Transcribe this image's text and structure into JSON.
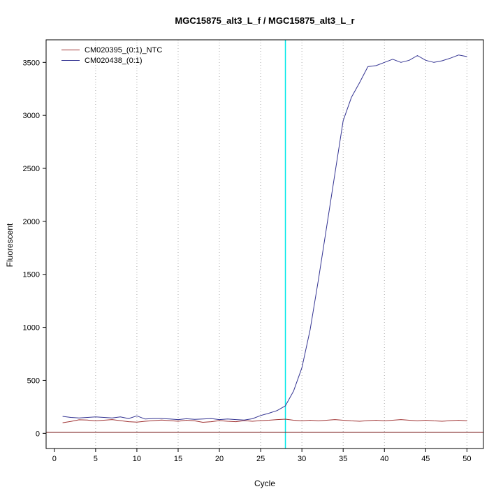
{
  "chart_data": {
    "type": "line",
    "title": "MGC15875_alt3_L_f / MGC15875_alt3_L_r",
    "xlabel": "Cycle",
    "ylabel": "Fluorescent",
    "xlim": [
      -1,
      52
    ],
    "ylim": [
      -143,
      3713
    ],
    "xticks": [
      0,
      5,
      10,
      15,
      20,
      25,
      30,
      35,
      40,
      45,
      50
    ],
    "yticks": [
      0,
      500,
      1000,
      1500,
      2000,
      2500,
      3000,
      3500
    ],
    "grid": "vertical-dotted",
    "grid_color": "#aaaaaa",
    "legend_position": "top-left",
    "baseline": {
      "y": 10,
      "color": "#7b1f1f"
    },
    "threshold_cycle_line": {
      "x": 28,
      "color": "#00e8e8"
    },
    "x": [
      1,
      2,
      3,
      4,
      5,
      6,
      7,
      8,
      9,
      10,
      11,
      12,
      13,
      14,
      15,
      16,
      17,
      18,
      19,
      20,
      21,
      22,
      23,
      24,
      25,
      26,
      27,
      28,
      29,
      30,
      31,
      32,
      33,
      34,
      35,
      36,
      37,
      38,
      39,
      40,
      41,
      42,
      43,
      44,
      45,
      46,
      47,
      48,
      49,
      50
    ],
    "series": [
      {
        "name": "CM020395_(0:1)_NTC",
        "color": "#a03333",
        "values": [
          100,
          112,
          128,
          125,
          118,
          124,
          130,
          120,
          110,
          106,
          114,
          120,
          126,
          120,
          114,
          124,
          118,
          104,
          110,
          120,
          114,
          110,
          120,
          114,
          120,
          124,
          130,
          134,
          124,
          118,
          124,
          118,
          124,
          130,
          124,
          118,
          114,
          120,
          124,
          118,
          124,
          130,
          124,
          118,
          124,
          118,
          114,
          120,
          124,
          118
        ]
      },
      {
        "name": "CM020438_(0:1)",
        "color": "#343492",
        "values": [
          160,
          150,
          145,
          150,
          155,
          150,
          145,
          155,
          140,
          165,
          135,
          140,
          140,
          135,
          130,
          138,
          132,
          136,
          140,
          130,
          136,
          130,
          125,
          138,
          168,
          190,
          215,
          260,
          400,
          620,
          980,
          1450,
          1950,
          2450,
          2950,
          3170,
          3310,
          3460,
          3470,
          3500,
          3530,
          3500,
          3520,
          3565,
          3520,
          3500,
          3515,
          3540,
          3570,
          3555
        ]
      }
    ]
  }
}
